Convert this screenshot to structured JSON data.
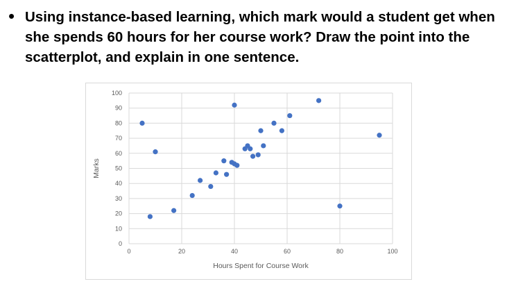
{
  "slide": {
    "bullet": "•",
    "question": "Using instance-based learning, which mark would a student get when she spends 60 hours for her course work? Draw the point into the scatterplot, and explain in one sentence."
  },
  "chart_data": {
    "type": "scatter",
    "xlabel": "Hours Spent for Course Work",
    "ylabel": "Marks",
    "xlim": [
      0,
      100
    ],
    "ylim": [
      0,
      100
    ],
    "x_ticks": [
      "0",
      "20",
      "40",
      "60",
      "80",
      "100"
    ],
    "y_ticks": [
      "0",
      "10",
      "20",
      "30",
      "40",
      "50",
      "60",
      "70",
      "80",
      "90",
      "100"
    ],
    "grid": true,
    "legend": "none",
    "marker_color": "#4472c4",
    "points": [
      {
        "x": 5,
        "y": 80
      },
      {
        "x": 8,
        "y": 18
      },
      {
        "x": 10,
        "y": 61
      },
      {
        "x": 17,
        "y": 22
      },
      {
        "x": 24,
        "y": 32
      },
      {
        "x": 27,
        "y": 42
      },
      {
        "x": 31,
        "y": 38
      },
      {
        "x": 33,
        "y": 47
      },
      {
        "x": 36,
        "y": 55
      },
      {
        "x": 37,
        "y": 46
      },
      {
        "x": 39,
        "y": 54
      },
      {
        "x": 40,
        "y": 92
      },
      {
        "x": 40,
        "y": 53
      },
      {
        "x": 41,
        "y": 52
      },
      {
        "x": 44,
        "y": 63
      },
      {
        "x": 45,
        "y": 65
      },
      {
        "x": 46,
        "y": 63
      },
      {
        "x": 47,
        "y": 58
      },
      {
        "x": 49,
        "y": 59
      },
      {
        "x": 50,
        "y": 75
      },
      {
        "x": 51,
        "y": 65
      },
      {
        "x": 55,
        "y": 80
      },
      {
        "x": 58,
        "y": 75
      },
      {
        "x": 61,
        "y": 85
      },
      {
        "x": 72,
        "y": 95
      },
      {
        "x": 80,
        "y": 25
      },
      {
        "x": 95,
        "y": 72
      }
    ]
  }
}
